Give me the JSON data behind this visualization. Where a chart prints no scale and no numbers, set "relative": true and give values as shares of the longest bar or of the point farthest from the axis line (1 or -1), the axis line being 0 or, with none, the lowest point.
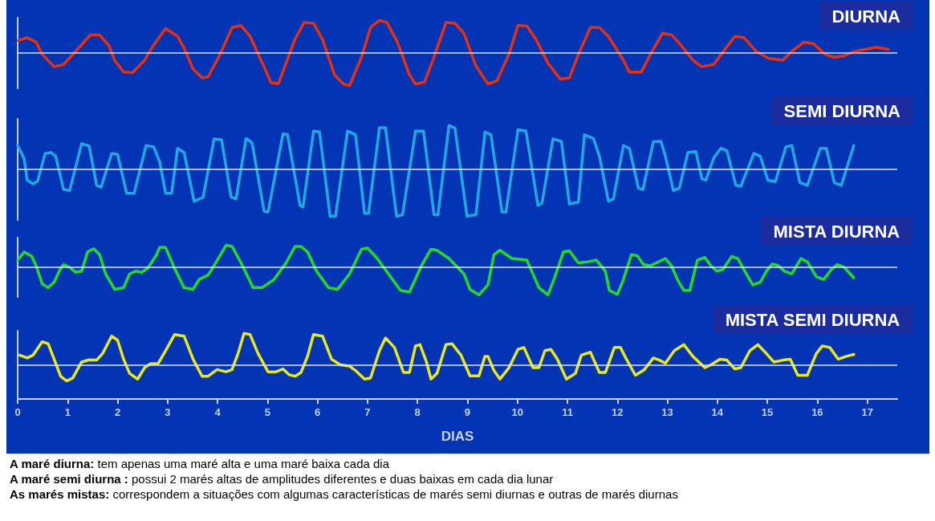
{
  "chart_data": [
    {
      "type": "line",
      "title": "DIURNA",
      "relative": true,
      "marker": "none",
      "grid": false,
      "tick_labels": false,
      "xlim": [
        0,
        17.6
      ],
      "ref_lines": [
        {
          "axis": "y",
          "value": 0,
          "color": "#dde4f0"
        }
      ],
      "x": [
        0.01,
        0.19,
        0.37,
        0.49,
        0.73,
        0.92,
        1.16,
        1.46,
        1.64,
        1.82,
        1.94,
        2.12,
        2.3,
        2.54,
        2.72,
        2.96,
        3.2,
        3.33,
        3.51,
        3.69,
        3.81,
        4.05,
        4.29,
        4.47,
        4.65,
        4.95,
        5.07,
        5.22,
        5.37,
        5.55,
        5.73,
        5.92,
        6.1,
        6.34,
        6.52,
        6.64,
        6.88,
        7.06,
        7.24,
        7.39,
        7.6,
        7.84,
        7.96,
        8.14,
        8.33,
        8.57,
        8.75,
        8.93,
        9.17,
        9.41,
        9.59,
        9.83,
        10.01,
        10.19,
        10.37,
        10.61,
        10.86,
        11.04,
        11.22,
        11.46,
        11.64,
        11.82,
        12.12,
        12.24,
        12.48,
        12.66,
        12.9,
        13.08,
        13.27,
        13.51,
        13.69,
        13.93,
        14.17,
        14.35,
        14.53,
        14.78,
        15.02,
        15.31,
        15.49,
        15.73,
        15.92,
        16.16,
        16.34,
        16.52,
        16.76,
        17.18,
        17.42
      ],
      "series": [
        {
          "color": "#e8300e",
          "values": [
            0.38,
            0.47,
            0.33,
            -0.04,
            -0.42,
            -0.35,
            0.05,
            0.56,
            0.55,
            0.24,
            -0.22,
            -0.58,
            -0.6,
            -0.22,
            0.24,
            0.75,
            0.51,
            0.15,
            -0.49,
            -0.76,
            -0.73,
            -0.04,
            0.78,
            0.84,
            0.51,
            -0.49,
            -0.91,
            -0.93,
            -0.31,
            0.42,
            0.93,
            0.91,
            0.42,
            -0.67,
            -0.95,
            -1,
            -0.13,
            0.78,
            1,
            0.93,
            0.33,
            -0.67,
            -0.95,
            -0.89,
            -0.13,
            0.93,
            0.91,
            0.6,
            -0.4,
            -0.95,
            -0.85,
            -0.04,
            0.84,
            0.82,
            0.42,
            -0.31,
            -0.8,
            -0.76,
            -0.04,
            0.78,
            0.78,
            0.51,
            -0.22,
            -0.58,
            -0.58,
            -0.04,
            0.6,
            0.56,
            0.24,
            -0.22,
            -0.42,
            -0.35,
            0.15,
            0.51,
            0.47,
            0.05,
            -0.16,
            -0.22,
            0.05,
            0.33,
            0.29,
            -0.04,
            -0.13,
            -0.09,
            0.05,
            0.18,
            0.11
          ]
        }
      ]
    },
    {
      "type": "line",
      "title": "SEMI DIURNA",
      "relative": true,
      "marker": "none",
      "grid": false,
      "tick_labels": false,
      "xlim": [
        0,
        17.6
      ],
      "ref_lines": [
        {
          "axis": "y",
          "value": 0,
          "color": "#dde4f0"
        }
      ],
      "x": [
        0,
        0.13,
        0.19,
        0.31,
        0.4,
        0.55,
        0.67,
        0.76,
        0.92,
        1.04,
        1.28,
        1.43,
        1.58,
        1.67,
        1.88,
        2.0,
        2.18,
        2.33,
        2.57,
        2.72,
        2.84,
        2.96,
        3.08,
        3.2,
        3.33,
        3.53,
        3.71,
        3.93,
        4.08,
        4.27,
        4.37,
        4.57,
        4.69,
        4.93,
        5.01,
        5.31,
        5.4,
        5.65,
        5.71,
        5.92,
        6.04,
        6.25,
        6.36,
        6.6,
        6.76,
        6.94,
        7.02,
        7.24,
        7.36,
        7.58,
        7.7,
        7.96,
        8.12,
        8.33,
        8.41,
        8.63,
        8.75,
        8.99,
        9.17,
        9.35,
        9.47,
        9.69,
        9.77,
        10.01,
        10.17,
        10.41,
        10.49,
        10.71,
        10.88,
        11.04,
        11.22,
        11.34,
        11.52,
        11.64,
        11.82,
        11.92,
        12.12,
        12.24,
        12.42,
        12.51,
        12.72,
        12.87,
        12.96,
        13.12,
        13.24,
        13.41,
        13.57,
        13.69,
        13.77,
        13.93,
        14.07,
        14.19,
        14.37,
        14.47,
        14.73,
        14.86,
        15.01,
        15.16,
        15.37,
        15.49,
        15.65,
        15.8,
        16.06,
        16.18,
        16.34,
        16.48,
        16.73
      ],
      "series": [
        {
          "color": "#1fa8e2",
          "values": [
            0.51,
            0.23,
            -0.23,
            -0.31,
            -0.25,
            0.34,
            0.36,
            0.28,
            -0.43,
            -0.45,
            0.55,
            0.5,
            -0.34,
            -0.38,
            0.34,
            0.32,
            -0.51,
            -0.51,
            0.51,
            0.48,
            0.17,
            -0.51,
            -0.51,
            0.45,
            0.36,
            -0.68,
            -0.6,
            0.65,
            0.63,
            -0.59,
            -0.63,
            0.66,
            0.57,
            -0.89,
            -0.91,
            0.76,
            0.74,
            -0.77,
            -0.8,
            0.82,
            0.8,
            -1,
            -1,
            0.82,
            0.74,
            -0.94,
            -0.94,
            0.89,
            0.89,
            -1,
            -0.97,
            0.82,
            0.82,
            -0.97,
            -0.97,
            0.94,
            0.88,
            -1,
            -0.97,
            0.8,
            0.74,
            -0.91,
            -0.91,
            0.85,
            0.82,
            -0.77,
            -0.72,
            0.65,
            0.6,
            -0.74,
            -0.7,
            0.74,
            0.66,
            0.28,
            -0.68,
            -0.63,
            0.51,
            0.45,
            -0.4,
            -0.43,
            0.59,
            0.6,
            0.28,
            -0.45,
            -0.4,
            0.36,
            0.38,
            -0.2,
            -0.23,
            0.25,
            0.45,
            0.4,
            -0.34,
            -0.36,
            0.34,
            0.28,
            -0.23,
            -0.26,
            0.48,
            0.51,
            -0.28,
            -0.34,
            0.45,
            0.45,
            -0.28,
            -0.34,
            0.51
          ]
        }
      ]
    },
    {
      "type": "line",
      "title": "MISTA DIURNA",
      "relative": true,
      "marker": "none",
      "grid": false,
      "tick_labels": false,
      "xlim": [
        0,
        17.6
      ],
      "ref_lines": [
        {
          "axis": "y",
          "value": 0,
          "color": "#dde4f0"
        }
      ],
      "x": [
        0,
        0.13,
        0.28,
        0.37,
        0.49,
        0.61,
        0.73,
        0.86,
        0.92,
        1.04,
        1.16,
        1.28,
        1.4,
        1.52,
        1.64,
        1.76,
        1.94,
        2.12,
        2.24,
        2.36,
        2.48,
        2.6,
        2.78,
        2.84,
        2.96,
        3.14,
        3.33,
        3.51,
        3.63,
        3.81,
        3.93,
        4.17,
        4.29,
        4.47,
        4.71,
        4.89,
        5.13,
        5.37,
        5.55,
        5.67,
        5.8,
        5.98,
        6.22,
        6.4,
        6.64,
        6.88,
        7.0,
        7.18,
        7.42,
        7.66,
        7.84,
        8.08,
        8.27,
        8.39,
        8.63,
        8.93,
        9.05,
        9.23,
        9.41,
        9.53,
        9.65,
        9.89,
        10.19,
        10.43,
        10.61,
        10.73,
        10.92,
        11.04,
        11.22,
        11.4,
        11.58,
        11.76,
        11.84,
        12.0,
        12.12,
        12.28,
        12.4,
        12.52,
        12.66,
        12.78,
        12.96,
        13.08,
        13.2,
        13.33,
        13.45,
        13.6,
        13.75,
        13.87,
        13.99,
        14.11,
        14.29,
        14.41,
        14.55,
        14.71,
        14.86,
        14.98,
        15.1,
        15.22,
        15.34,
        15.49,
        15.67,
        15.8,
        15.98,
        16.13,
        16.28,
        16.4,
        16.54,
        16.73
      ],
      "series": [
        {
          "color": "#22dc22",
          "values": [
            0.26,
            0.56,
            0.4,
            0.06,
            -0.6,
            -0.74,
            -0.54,
            -0.04,
            0.1,
            0,
            -0.18,
            -0.14,
            0.56,
            0.68,
            0.46,
            -0.24,
            -0.8,
            -0.74,
            -0.24,
            -0.14,
            -0.18,
            -0.04,
            0.46,
            0.72,
            0.72,
            -0.04,
            -0.74,
            -0.8,
            -0.44,
            -0.28,
            0.06,
            0.8,
            0.76,
            0.16,
            -0.74,
            -0.74,
            -0.44,
            0.16,
            0.76,
            0.76,
            0.56,
            -0.14,
            -0.74,
            -0.8,
            -0.24,
            0.66,
            0.7,
            0.36,
            -0.24,
            -0.84,
            -0.9,
            0.06,
            0.66,
            0.62,
            0.32,
            -0.24,
            -0.8,
            -1,
            -0.64,
            0.46,
            0.62,
            0.32,
            0.26,
            -0.74,
            -1,
            -0.44,
            0.56,
            0.6,
            0.16,
            0.2,
            0.26,
            -0.14,
            -0.84,
            -0.98,
            -0.44,
            0.46,
            0.42,
            0.1,
            0.06,
            0.16,
            0.32,
            0.06,
            -0.44,
            -0.84,
            -0.84,
            0.26,
            0.36,
            0.06,
            -0.14,
            -0.08,
            0.4,
            0.32,
            -0.14,
            -0.64,
            -0.54,
            -0.14,
            0.12,
            0.06,
            -0.14,
            -0.24,
            0.32,
            0.2,
            -0.34,
            -0.44,
            -0.08,
            0.1,
            0,
            -0.38
          ]
        }
      ]
    },
    {
      "type": "line",
      "title": "MISTA SEMI DIURNA",
      "xlabel": "DIAS",
      "relative": true,
      "marker": "none",
      "grid": false,
      "tick_labels": "x",
      "xlim": [
        0,
        17.6
      ],
      "xticks": [
        0,
        1,
        2,
        3,
        4,
        5,
        6,
        7,
        8,
        9,
        10,
        11,
        12,
        13,
        14,
        15,
        16,
        17
      ],
      "ref_lines": [
        {
          "axis": "y",
          "value": 0,
          "color": "#dde4f0"
        }
      ],
      "annotations": [
        "A maré diurna: tem apenas uma maré alta e uma maré baixa cada dia",
        "A maré semi diurna : possui 2 marés altas de amplitudes diferentes e duas baixas em cada dia lunar",
        "As marés mistas: correspondem a situações com algumas características de marés semi diurnas e outras de marés diurnas"
      ],
      "x": [
        0.04,
        0.19,
        0.31,
        0.49,
        0.61,
        0.73,
        0.86,
        0.98,
        1.1,
        1.28,
        1.43,
        1.58,
        1.7,
        1.88,
        2.0,
        2.12,
        2.24,
        2.4,
        2.54,
        2.66,
        2.81,
        2.96,
        3.14,
        3.33,
        3.51,
        3.69,
        3.81,
        3.99,
        4.17,
        4.29,
        4.41,
        4.53,
        4.65,
        4.81,
        5.01,
        5.17,
        5.31,
        5.43,
        5.55,
        5.67,
        5.8,
        5.92,
        6.1,
        6.28,
        6.46,
        6.64,
        6.76,
        6.94,
        7.06,
        7.24,
        7.36,
        7.54,
        7.72,
        7.84,
        7.96,
        8.05,
        8.18,
        8.27,
        8.39,
        8.57,
        8.69,
        8.87,
        9.05,
        9.23,
        9.35,
        9.41,
        9.53,
        9.65,
        9.83,
        10.01,
        10.13,
        10.31,
        10.43,
        10.55,
        10.67,
        10.8,
        10.98,
        11.16,
        11.28,
        11.46,
        11.64,
        11.76,
        11.94,
        12.06,
        12.18,
        12.36,
        12.54,
        12.72,
        12.84,
        12.96,
        13.14,
        13.33,
        13.51,
        13.75,
        13.87,
        14.05,
        14.19,
        14.35,
        14.47,
        14.65,
        14.81,
        14.98,
        15.13,
        15.31,
        15.46,
        15.61,
        15.8,
        15.98,
        16.1,
        16.25,
        16.42,
        16.58,
        16.73
      ],
      "series": [
        {
          "color": "#e8e81c",
          "values": [
            0.31,
            0.22,
            0.31,
            0.73,
            0.67,
            0.18,
            -0.36,
            -0.51,
            -0.42,
            0.09,
            0.16,
            0.15,
            0.36,
            0.91,
            0.78,
            0.18,
            -0.27,
            -0.45,
            -0.09,
            0.04,
            0.04,
            0.45,
            0.96,
            0.91,
            0.18,
            -0.36,
            -0.36,
            -0.15,
            -0.22,
            -0.15,
            0.36,
            1,
            0.96,
            0.36,
            -0.22,
            -0.22,
            -0.13,
            -0.31,
            -0.36,
            -0.24,
            0.27,
            0.96,
            0.91,
            0.18,
            0,
            -0.04,
            -0.18,
            -0.45,
            -0.42,
            0.45,
            0.85,
            0.55,
            -0.24,
            -0.24,
            0.6,
            0.64,
            0.09,
            -0.45,
            -0.27,
            0.64,
            0.67,
            0.31,
            -0.35,
            -0.35,
            0.27,
            0.27,
            -0.18,
            -0.45,
            -0.09,
            0.49,
            0.55,
            -0.09,
            -0.09,
            0.45,
            0.49,
            0.18,
            -0.45,
            -0.27,
            0.31,
            0.4,
            -0.24,
            -0.24,
            0.55,
            0.55,
            0.18,
            -0.33,
            -0.15,
            0.22,
            0.15,
            0.05,
            0.45,
            0.64,
            0.27,
            -0.09,
            0,
            0.18,
            0.15,
            -0.13,
            -0.09,
            0.45,
            0.64,
            0.36,
            0.09,
            0.15,
            0.18,
            -0.33,
            -0.33,
            0.36,
            0.6,
            0.55,
            0.18,
            0.27,
            0.33
          ]
        }
      ]
    }
  ]
}
